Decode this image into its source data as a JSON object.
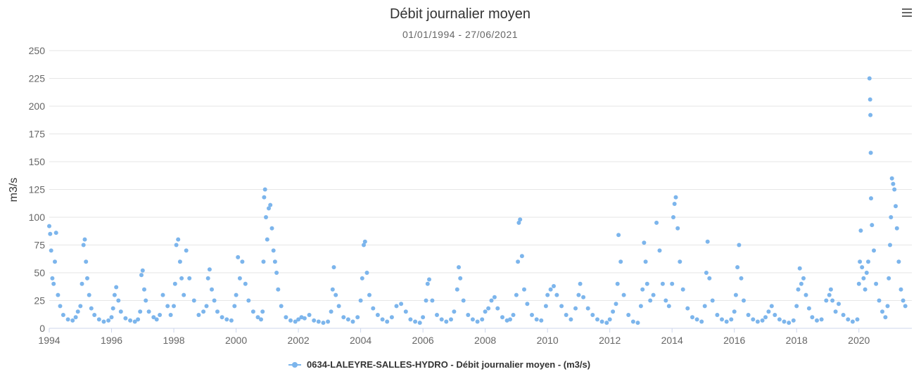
{
  "chart_data": {
    "type": "scatter",
    "title": "Débit journalier moyen",
    "subtitle": "01/01/1994 - 27/06/2021",
    "ylabel": "m3/s",
    "xlabel": "",
    "xlim": [
      1994.0,
      2021.7
    ],
    "ylim": [
      0,
      250
    ],
    "xticks": [
      1994,
      1996,
      1998,
      2000,
      2002,
      2004,
      2006,
      2008,
      2010,
      2012,
      2014,
      2016,
      2018,
      2020
    ],
    "yticks": [
      0,
      25,
      50,
      75,
      100,
      125,
      150,
      175,
      200,
      225,
      250
    ],
    "grid": "horizontal",
    "legend_position": "bottom-center",
    "series": [
      {
        "name": "0634-LALEYRE-SALLES-HYDRO - Débit journalier moyen - (m3/s)",
        "color": "#7cb5ec",
        "x": [
          1994.0,
          1994.03,
          1994.06,
          1994.1,
          1994.14,
          1994.18,
          1994.22,
          1994.28,
          1994.35,
          1994.45,
          1994.6,
          1994.75,
          1994.85,
          1994.92,
          1995.0,
          1995.05,
          1995.1,
          1995.14,
          1995.18,
          1995.22,
          1995.28,
          1995.35,
          1995.45,
          1995.6,
          1995.75,
          1995.9,
          1996.0,
          1996.05,
          1996.1,
          1996.15,
          1996.22,
          1996.3,
          1996.45,
          1996.6,
          1996.75,
          1996.85,
          1996.92,
          1996.96,
          1997.0,
          1997.05,
          1997.1,
          1997.2,
          1997.35,
          1997.45,
          1997.55,
          1997.65,
          1997.8,
          1997.9,
          1998.0,
          1998.04,
          1998.08,
          1998.14,
          1998.2,
          1998.25,
          1998.32,
          1998.4,
          1998.5,
          1998.65,
          1998.8,
          1998.95,
          1999.05,
          1999.1,
          1999.15,
          1999.22,
          1999.3,
          1999.4,
          1999.55,
          1999.7,
          1999.85,
          1999.95,
          2000.0,
          2000.06,
          2000.12,
          2000.2,
          2000.3,
          2000.4,
          2000.55,
          2000.7,
          2000.8,
          2000.85,
          2000.88,
          2000.9,
          2000.93,
          2000.96,
          2001.0,
          2001.05,
          2001.1,
          2001.15,
          2001.2,
          2001.25,
          2001.3,
          2001.35,
          2001.45,
          2001.6,
          2001.75,
          2001.9,
          2002.0,
          2002.1,
          2002.2,
          2002.35,
          2002.5,
          2002.65,
          2002.8,
          2002.95,
          2003.05,
          2003.1,
          2003.14,
          2003.2,
          2003.3,
          2003.45,
          2003.6,
          2003.75,
          2003.9,
          2004.0,
          2004.05,
          2004.1,
          2004.14,
          2004.2,
          2004.28,
          2004.4,
          2004.55,
          2004.7,
          2004.85,
          2005.0,
          2005.15,
          2005.3,
          2005.45,
          2005.6,
          2005.75,
          2005.9,
          2006.0,
          2006.1,
          2006.15,
          2006.2,
          2006.3,
          2006.45,
          2006.6,
          2006.75,
          2006.9,
          2007.0,
          2007.1,
          2007.15,
          2007.2,
          2007.3,
          2007.45,
          2007.6,
          2007.75,
          2007.9,
          2008.0,
          2008.1,
          2008.2,
          2008.3,
          2008.4,
          2008.55,
          2008.7,
          2008.8,
          2008.9,
          2009.0,
          2009.05,
          2009.08,
          2009.12,
          2009.18,
          2009.25,
          2009.35,
          2009.5,
          2009.65,
          2009.8,
          2009.95,
          2010.0,
          2010.1,
          2010.2,
          2010.3,
          2010.45,
          2010.6,
          2010.75,
          2010.9,
          2011.0,
          2011.05,
          2011.15,
          2011.3,
          2011.45,
          2011.6,
          2011.75,
          2011.9,
          2012.0,
          2012.1,
          2012.2,
          2012.25,
          2012.28,
          2012.35,
          2012.45,
          2012.6,
          2012.75,
          2012.9,
          2013.0,
          2013.05,
          2013.1,
          2013.15,
          2013.2,
          2013.3,
          2013.4,
          2013.5,
          2013.6,
          2013.7,
          2013.8,
          2013.9,
          2014.0,
          2014.04,
          2014.08,
          2014.12,
          2014.18,
          2014.25,
          2014.35,
          2014.5,
          2014.65,
          2014.8,
          2014.95,
          2015.05,
          2015.1,
          2015.14,
          2015.2,
          2015.3,
          2015.45,
          2015.6,
          2015.75,
          2015.9,
          2016.0,
          2016.05,
          2016.1,
          2016.15,
          2016.22,
          2016.3,
          2016.45,
          2016.6,
          2016.75,
          2016.9,
          2017.0,
          2017.1,
          2017.2,
          2017.3,
          2017.45,
          2017.6,
          2017.75,
          2017.9,
          2018.0,
          2018.05,
          2018.1,
          2018.15,
          2018.22,
          2018.3,
          2018.4,
          2018.5,
          2018.65,
          2018.8,
          2018.95,
          2019.05,
          2019.1,
          2019.15,
          2019.25,
          2019.35,
          2019.5,
          2019.65,
          2019.8,
          2019.95,
          2020.0,
          2020.03,
          2020.06,
          2020.1,
          2020.15,
          2020.2,
          2020.25,
          2020.3,
          2020.34,
          2020.36,
          2020.37,
          2020.38,
          2020.39,
          2020.42,
          2020.48,
          2020.55,
          2020.65,
          2020.75,
          2020.85,
          2020.92,
          2020.96,
          2021.0,
          2021.03,
          2021.06,
          2021.1,
          2021.14,
          2021.18,
          2021.22,
          2021.28,
          2021.35,
          2021.42,
          2021.49
        ],
        "y": [
          92,
          85,
          70,
          45,
          40,
          60,
          86,
          30,
          20,
          12,
          8,
          7,
          10,
          15,
          20,
          40,
          75,
          80,
          60,
          45,
          30,
          18,
          12,
          8,
          6,
          7,
          10,
          18,
          30,
          37,
          25,
          15,
          9,
          7,
          6,
          8,
          15,
          48,
          52,
          35,
          25,
          15,
          10,
          8,
          12,
          30,
          20,
          12,
          20,
          40,
          75,
          80,
          60,
          45,
          30,
          70,
          45,
          25,
          12,
          15,
          20,
          45,
          53,
          35,
          25,
          15,
          10,
          8,
          7,
          20,
          30,
          64,
          45,
          60,
          40,
          25,
          15,
          10,
          8,
          15,
          60,
          118,
          125,
          100,
          80,
          108,
          111,
          90,
          70,
          60,
          50,
          35,
          20,
          10,
          7,
          6,
          8,
          10,
          9,
          12,
          7,
          6,
          5,
          6,
          15,
          35,
          55,
          30,
          20,
          10,
          8,
          6,
          10,
          25,
          45,
          75,
          78,
          50,
          30,
          18,
          12,
          8,
          6,
          10,
          20,
          22,
          15,
          8,
          6,
          5,
          10,
          25,
          40,
          44,
          25,
          12,
          8,
          6,
          8,
          15,
          35,
          55,
          45,
          25,
          12,
          8,
          6,
          8,
          15,
          18,
          25,
          28,
          18,
          10,
          7,
          8,
          12,
          30,
          60,
          95,
          98,
          65,
          35,
          22,
          12,
          8,
          7,
          20,
          30,
          35,
          38,
          30,
          20,
          12,
          8,
          18,
          30,
          40,
          28,
          18,
          12,
          8,
          6,
          5,
          8,
          15,
          22,
          40,
          84,
          60,
          30,
          12,
          6,
          5,
          20,
          35,
          77,
          60,
          40,
          25,
          30,
          95,
          70,
          40,
          25,
          20,
          40,
          100,
          112,
          118,
          90,
          60,
          35,
          18,
          10,
          8,
          6,
          20,
          50,
          78,
          45,
          25,
          12,
          8,
          6,
          8,
          15,
          30,
          55,
          75,
          45,
          25,
          12,
          8,
          6,
          7,
          10,
          15,
          20,
          12,
          8,
          6,
          5,
          7,
          20,
          35,
          54,
          40,
          45,
          30,
          18,
          10,
          7,
          8,
          25,
          30,
          35,
          25,
          15,
          22,
          12,
          8,
          6,
          8,
          40,
          60,
          88,
          55,
          45,
          35,
          50,
          60,
          225,
          206,
          192,
          158,
          117,
          93,
          70,
          40,
          25,
          15,
          10,
          20,
          45,
          75,
          100,
          135,
          130,
          125,
          110,
          90,
          60,
          35,
          25,
          20
        ]
      }
    ]
  }
}
